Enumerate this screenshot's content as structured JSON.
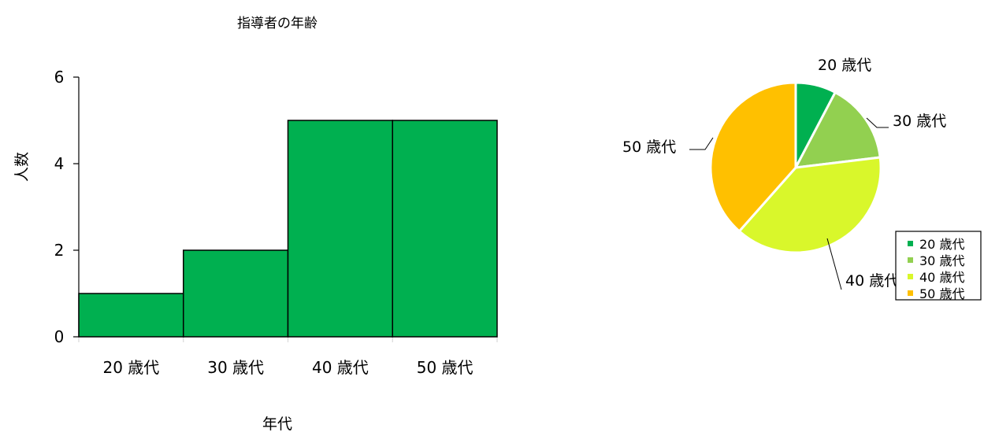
{
  "chart_data": [
    {
      "type": "bar",
      "title": "指導者の年齢",
      "xlabel": "年代",
      "ylabel": "人数",
      "categories": [
        "20 歳代",
        "30 歳代",
        "40 歳代",
        "50 歳代"
      ],
      "values": [
        1,
        2,
        5,
        5
      ],
      "ylim": [
        0,
        6
      ],
      "yticks": [
        0,
        2,
        4,
        6
      ],
      "grid": false,
      "colors": {
        "bar": "#00b050",
        "edge": "#000000"
      }
    },
    {
      "type": "pie",
      "categories": [
        "20 歳代",
        "30 歳代",
        "40 歳代",
        "50 歳代"
      ],
      "values": [
        1,
        2,
        5,
        5
      ],
      "colors": [
        "#00b050",
        "#92d050",
        "#d9f72b",
        "#ffc000"
      ],
      "legend": "bottom-right"
    }
  ]
}
